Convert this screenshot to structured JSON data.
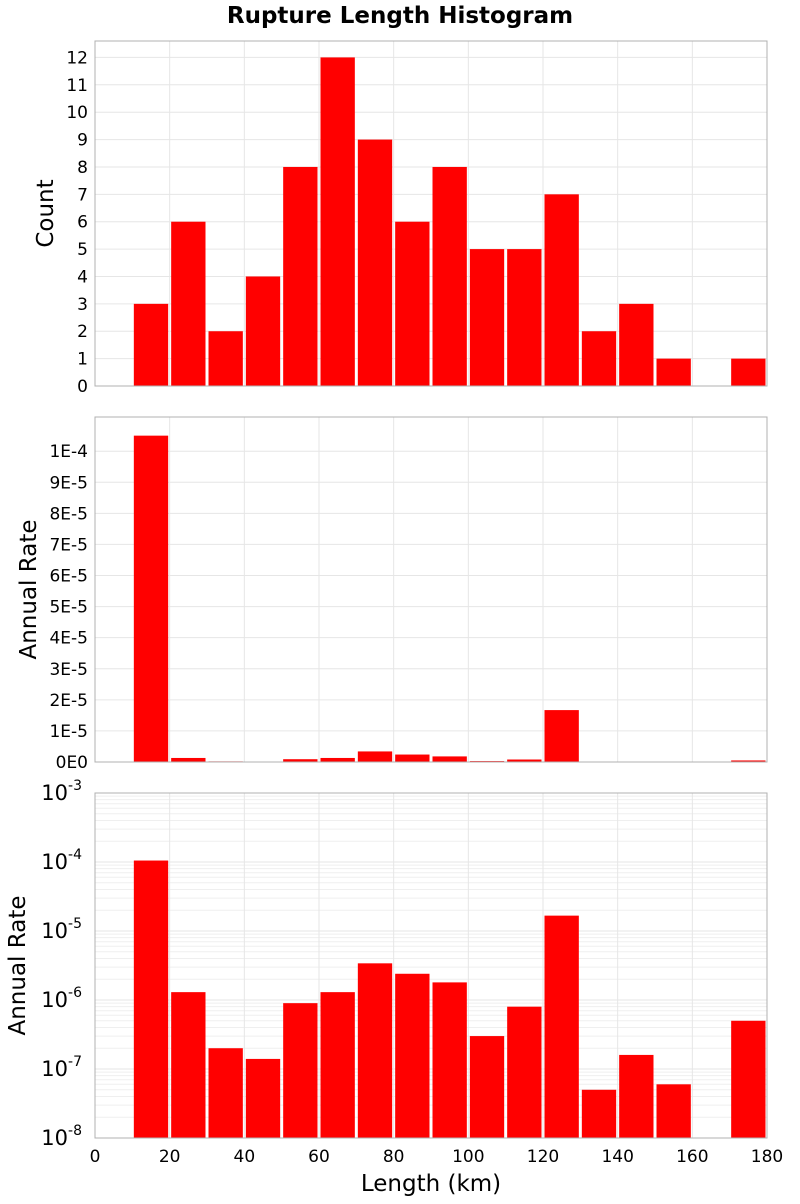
{
  "chart_data": {
    "title": "Rupture Length Histogram",
    "type": "bar",
    "x_axis": {
      "label": "Length (km)",
      "range": [
        0,
        180
      ],
      "ticks": [
        0,
        20,
        40,
        60,
        80,
        100,
        120,
        140,
        160,
        180
      ],
      "tick_labels": [
        "0",
        "20",
        "40",
        "60",
        "80",
        "100",
        "120",
        "140",
        "160",
        "180"
      ]
    },
    "bin_width": 10,
    "bin_starts": [
      10,
      20,
      30,
      40,
      50,
      60,
      70,
      80,
      90,
      100,
      110,
      120,
      130,
      140,
      150,
      160,
      170
    ],
    "panels": [
      {
        "name": "count",
        "ylabel": "Count",
        "scale": "linear",
        "ylim": [
          0,
          12.6
        ],
        "yticks": [
          0,
          1,
          2,
          3,
          4,
          5,
          6,
          7,
          8,
          9,
          10,
          11,
          12
        ],
        "ytick_labels": [
          "0",
          "1",
          "2",
          "3",
          "4",
          "5",
          "6",
          "7",
          "8",
          "9",
          "10",
          "11",
          "12"
        ],
        "values": [
          3,
          6,
          2,
          4,
          8,
          12,
          9,
          6,
          8,
          5,
          5,
          7,
          2,
          3,
          1,
          0,
          1
        ]
      },
      {
        "name": "annual-rate-linear",
        "ylabel": "Annual Rate",
        "scale": "linear",
        "ylim": [
          0,
          0.000111
        ],
        "yticks": [
          0,
          1e-05,
          2e-05,
          3e-05,
          4e-05,
          5e-05,
          6e-05,
          7e-05,
          8e-05,
          9e-05,
          0.0001
        ],
        "ytick_labels": [
          "0E0",
          "1E-5",
          "2E-5",
          "3E-5",
          "4E-5",
          "5E-5",
          "6E-5",
          "7E-5",
          "8E-5",
          "9E-5",
          "1E-4"
        ],
        "values": [
          0.000105,
          1.3e-06,
          2e-07,
          1.4e-07,
          9e-07,
          1.3e-06,
          3.4e-06,
          2.4e-06,
          1.8e-06,
          3e-07,
          8e-07,
          1.67e-05,
          5e-08,
          1.6e-07,
          6e-08,
          0,
          5e-07
        ]
      },
      {
        "name": "annual-rate-log",
        "ylabel": "Annual Rate",
        "scale": "log",
        "ylim": [
          1e-08,
          0.001
        ],
        "yticks": [
          1e-08,
          1e-07,
          1e-06,
          1e-05,
          0.0001,
          0.001
        ],
        "ytick_base": "10",
        "ytick_exponents": [
          "-8",
          "-7",
          "-6",
          "-5",
          "-4",
          "-3"
        ],
        "values": [
          0.000105,
          1.3e-06,
          2e-07,
          1.4e-07,
          9e-07,
          1.3e-06,
          3.4e-06,
          2.4e-06,
          1.8e-06,
          3e-07,
          8e-07,
          1.67e-05,
          5e-08,
          1.6e-07,
          6e-08,
          0,
          5e-07
        ]
      }
    ],
    "colors": {
      "bar": "#ff0000",
      "grid": "#e6e6e6",
      "grid_minor": "#efefef",
      "frame": "#b0b0b0"
    }
  }
}
